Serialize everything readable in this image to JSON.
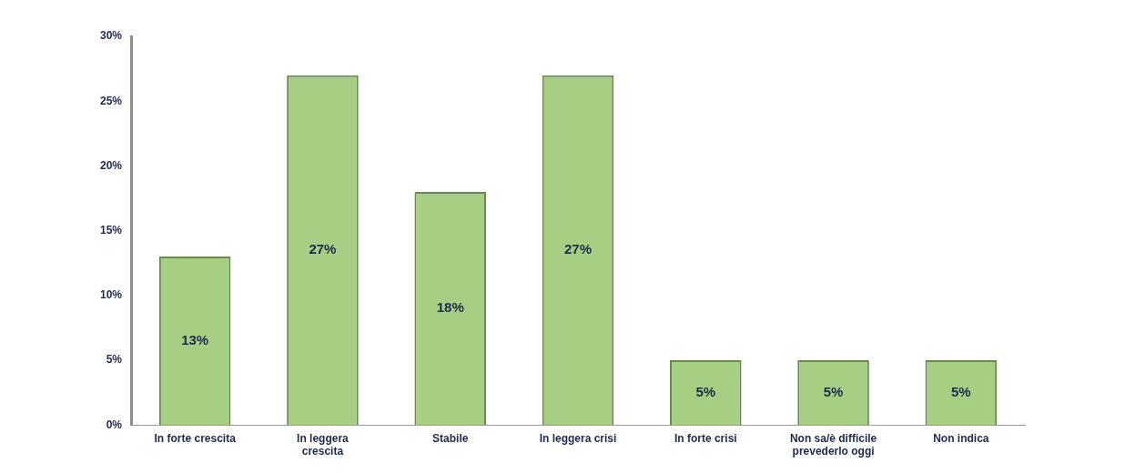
{
  "chart_data": {
    "type": "bar",
    "categories": [
      "In forte crescita",
      "In leggera crescita",
      "Stabile",
      "In leggera crisi",
      "In forte crisi",
      "Non sa/è difficile prevederlo oggi",
      "Non indica"
    ],
    "values": [
      13,
      27,
      18,
      27,
      5,
      5,
      5
    ],
    "value_labels": [
      "13%",
      "27%",
      "18%",
      "27%",
      "5%",
      "5%",
      "5%"
    ],
    "color": "#a6cf84",
    "ylim": [
      0,
      30
    ],
    "yticks": [
      {
        "value": 0,
        "label": "0%"
      },
      {
        "value": 5,
        "label": "5%"
      },
      {
        "value": 10,
        "label": "10%"
      },
      {
        "value": 15,
        "label": "15%"
      },
      {
        "value": 20,
        "label": "20%"
      },
      {
        "value": 25,
        "label": "25%"
      },
      {
        "value": 30,
        "label": "30%"
      }
    ],
    "grid": false,
    "data_labels": true
  }
}
